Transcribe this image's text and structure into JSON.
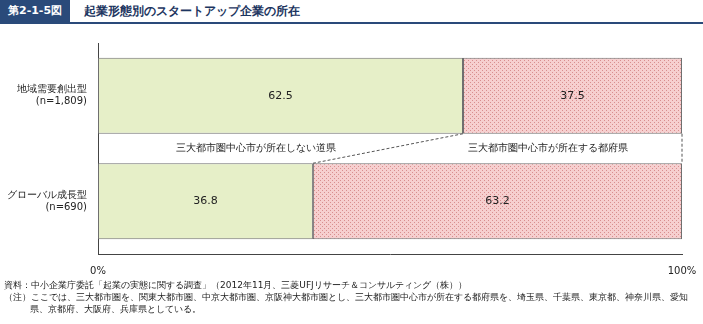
{
  "chart_data": {
    "type": "bar",
    "figure_label": "第2-1-5図",
    "title": "起業形態別のスタートアップ企業の所在",
    "categories": [
      "地域需要創出型\n(n=1,809)",
      "グローバル成長型\n(n=690)"
    ],
    "series": [
      {
        "name": "三大都市圏中心市が所在しない道県",
        "color": "#e6efc8",
        "values": [
          62.5,
          36.8
        ]
      },
      {
        "name": "三大都市圏中心市が所在する都府県",
        "color": "#f6cfcf",
        "values": [
          37.5,
          63.2
        ]
      }
    ],
    "xlim": [
      0,
      100
    ],
    "xticks": [
      {
        "value": 0,
        "label": "0%"
      },
      {
        "value": 100,
        "label": "100%"
      }
    ],
    "orientation": "horizontal",
    "stacked": true,
    "data_labels": true,
    "grid": false,
    "annotations": [
      "資料：中小企業庁委託「起業の実態に関する調査」（2012年11月、三菱UFJリサーチ＆コンサルティング（株））",
      "（注）ここでは、三大都市圏を、関東大都市圏、中京大都市圏、京阪神大都市圏とし、三大都市圏中心市が所在する都府県を、埼玉県、千葉県、東京都、神奈川県、愛知県、京都府、大阪府、兵庫県としている。"
    ]
  }
}
